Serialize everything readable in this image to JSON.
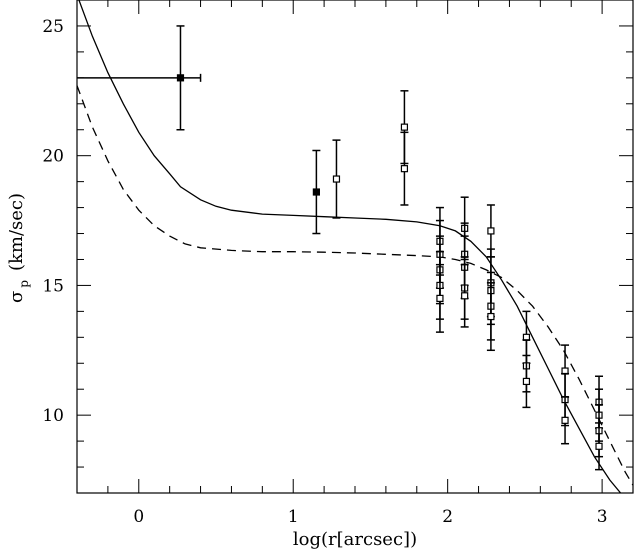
{
  "chart_data": {
    "type": "scatter",
    "title": "",
    "xlabel": "log(r[arcsec])",
    "ylabel_symbol": "σ",
    "ylabel_subscript": "p",
    "ylabel_unit": "(km/sec)",
    "xlim": [
      -0.4,
      3.2
    ],
    "ylim": [
      7.0,
      26.0
    ],
    "x_ticks_major": [
      0,
      1,
      2,
      3
    ],
    "x_ticks_minor_step": 0.2,
    "y_ticks_major": [
      10,
      15,
      20,
      25
    ],
    "y_ticks_minor_step": 1,
    "grid": false,
    "filled_points": [
      {
        "x": 0.27,
        "y": 23.0,
        "yerr": 2.0,
        "xerr_lo": 0.7,
        "xerr_hi": 0.13
      },
      {
        "x": 1.15,
        "y": 18.6,
        "yerr": 1.6
      }
    ],
    "open_points": [
      {
        "x": 1.28,
        "y": 19.1,
        "yerr": 1.5
      },
      {
        "x": 1.72,
        "y": 21.1,
        "yerr": 1.4
      },
      {
        "x": 1.72,
        "y": 19.5,
        "yerr": 1.4
      },
      {
        "x": 1.95,
        "y": 16.7,
        "yerr": 1.3
      },
      {
        "x": 1.95,
        "y": 16.2,
        "yerr": 1.3
      },
      {
        "x": 1.95,
        "y": 15.6,
        "yerr": 1.3
      },
      {
        "x": 1.95,
        "y": 15.0,
        "yerr": 1.3
      },
      {
        "x": 1.95,
        "y": 14.5,
        "yerr": 1.3
      },
      {
        "x": 2.11,
        "y": 17.2,
        "yerr": 1.2
      },
      {
        "x": 2.11,
        "y": 16.2,
        "yerr": 1.2
      },
      {
        "x": 2.11,
        "y": 15.7,
        "yerr": 1.2
      },
      {
        "x": 2.11,
        "y": 14.9,
        "yerr": 1.2
      },
      {
        "x": 2.11,
        "y": 14.6,
        "yerr": 1.2
      },
      {
        "x": 2.28,
        "y": 17.1,
        "yerr": 1.0
      },
      {
        "x": 2.28,
        "y": 15.1,
        "yerr": 1.3
      },
      {
        "x": 2.28,
        "y": 14.8,
        "yerr": 1.3
      },
      {
        "x": 2.28,
        "y": 14.2,
        "yerr": 1.3
      },
      {
        "x": 2.28,
        "y": 13.8,
        "yerr": 1.3
      },
      {
        "x": 2.51,
        "y": 13.0,
        "yerr": 1.0
      },
      {
        "x": 2.51,
        "y": 11.9,
        "yerr": 1.0
      },
      {
        "x": 2.51,
        "y": 11.3,
        "yerr": 1.0
      },
      {
        "x": 2.76,
        "y": 11.7,
        "yerr": 1.0
      },
      {
        "x": 2.76,
        "y": 10.6,
        "yerr": 1.0
      },
      {
        "x": 2.76,
        "y": 9.8,
        "yerr": 0.9
      },
      {
        "x": 2.98,
        "y": 10.5,
        "yerr": 1.0
      },
      {
        "x": 2.98,
        "y": 10.0,
        "yerr": 1.0
      },
      {
        "x": 2.98,
        "y": 9.4,
        "yerr": 1.0
      },
      {
        "x": 2.98,
        "y": 8.8,
        "yerr": 0.9
      }
    ],
    "solid_curve": [
      [
        -0.4,
        26.2
      ],
      [
        -0.3,
        24.6
      ],
      [
        -0.2,
        23.2
      ],
      [
        -0.1,
        22.0
      ],
      [
        0.0,
        20.9
      ],
      [
        0.1,
        20.0
      ],
      [
        0.2,
        19.3
      ],
      [
        0.27,
        18.8
      ],
      [
        0.4,
        18.3
      ],
      [
        0.5,
        18.05
      ],
      [
        0.6,
        17.9
      ],
      [
        0.8,
        17.75
      ],
      [
        1.0,
        17.7
      ],
      [
        1.2,
        17.65
      ],
      [
        1.4,
        17.6
      ],
      [
        1.6,
        17.55
      ],
      [
        1.8,
        17.45
      ],
      [
        1.95,
        17.3
      ],
      [
        2.05,
        17.1
      ],
      [
        2.15,
        16.7
      ],
      [
        2.25,
        16.1
      ],
      [
        2.35,
        15.2
      ],
      [
        2.45,
        14.2
      ],
      [
        2.55,
        13.0
      ],
      [
        2.65,
        11.8
      ],
      [
        2.75,
        10.6
      ],
      [
        2.85,
        9.5
      ],
      [
        2.95,
        8.4
      ],
      [
        3.05,
        7.5
      ],
      [
        3.12,
        7.0
      ]
    ],
    "dashed_curve": [
      [
        -0.4,
        22.7
      ],
      [
        -0.3,
        21.1
      ],
      [
        -0.2,
        19.8
      ],
      [
        -0.1,
        18.7
      ],
      [
        0.0,
        17.9
      ],
      [
        0.1,
        17.3
      ],
      [
        0.2,
        16.9
      ],
      [
        0.3,
        16.6
      ],
      [
        0.4,
        16.45
      ],
      [
        0.6,
        16.35
      ],
      [
        0.8,
        16.3
      ],
      [
        1.0,
        16.3
      ],
      [
        1.2,
        16.28
      ],
      [
        1.4,
        16.25
      ],
      [
        1.6,
        16.2
      ],
      [
        1.8,
        16.15
      ],
      [
        1.95,
        16.1
      ],
      [
        2.05,
        16.0
      ],
      [
        2.15,
        15.85
      ],
      [
        2.25,
        15.6
      ],
      [
        2.35,
        15.3
      ],
      [
        2.45,
        14.8
      ],
      [
        2.55,
        14.2
      ],
      [
        2.65,
        13.4
      ],
      [
        2.75,
        12.5
      ],
      [
        2.85,
        11.4
      ],
      [
        2.95,
        10.2
      ],
      [
        3.05,
        9.0
      ],
      [
        3.15,
        7.8
      ],
      [
        3.2,
        7.3
      ]
    ]
  }
}
